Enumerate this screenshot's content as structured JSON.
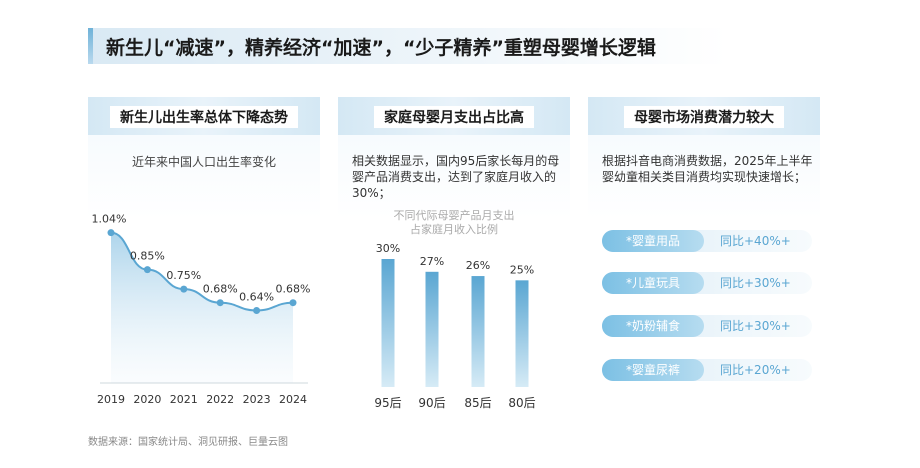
{
  "header": {
    "title": "新生儿“减速”，精养经济“加速”，“少子精养”重塑母婴增长逻辑"
  },
  "panel1": {
    "title": "新生儿出生率总体下降态势",
    "subtitle": "近年来中国人口出生率变化"
  },
  "panel2": {
    "title": "家庭母婴月支出占比高",
    "desc": "相关数据显示，国内95后家长每月的母婴产品消费支出，达到了家庭月收入的30%；",
    "chart_title_line1": "不同代际母婴产品月支出",
    "chart_title_line2": "占家庭月收入比例"
  },
  "panel3": {
    "title": "母婴市场消费潜力较大",
    "desc": "根据抖音电商消费数据，2025年上半年婴幼童相关类目消费均实现快速增长；",
    "items": [
      {
        "label": "*婴童用品",
        "value": "同比+40%+"
      },
      {
        "label": "*儿童玩具",
        "value": "同比+30%+"
      },
      {
        "label": "*奶粉辅食",
        "value": "同比+30%+"
      },
      {
        "label": "*婴童尿裤",
        "value": "同比+20%+"
      }
    ]
  },
  "source": "数据来源：国家统计局、洞见研报、巨量云图",
  "colors": {
    "accent": "#5aa6d2",
    "line": "#5aa6d2",
    "bar_top": "#5aa6d2",
    "bar_bottom": "#d6ebf6"
  },
  "chart_data": [
    {
      "type": "line",
      "title": "近年来中国人口出生率变化",
      "x": [
        "2019",
        "2020",
        "2021",
        "2022",
        "2023",
        "2024"
      ],
      "values": [
        1.04,
        0.85,
        0.75,
        0.68,
        0.64,
        0.68
      ],
      "labels": [
        "1.04%",
        "0.85%",
        "0.75%",
        "0.68%",
        "0.64%",
        "0.68%"
      ],
      "ylim": [
        0.55,
        1.1
      ],
      "grid": false
    },
    {
      "type": "bar",
      "title": "不同代际母婴产品月支出占家庭月收入比例",
      "categories": [
        "95后",
        "90后",
        "85后",
        "80后"
      ],
      "values": [
        30,
        27,
        26,
        25
      ],
      "labels": [
        "30%",
        "27%",
        "26%",
        "25%"
      ],
      "ylim": [
        0,
        30
      ],
      "grid": false
    }
  ]
}
